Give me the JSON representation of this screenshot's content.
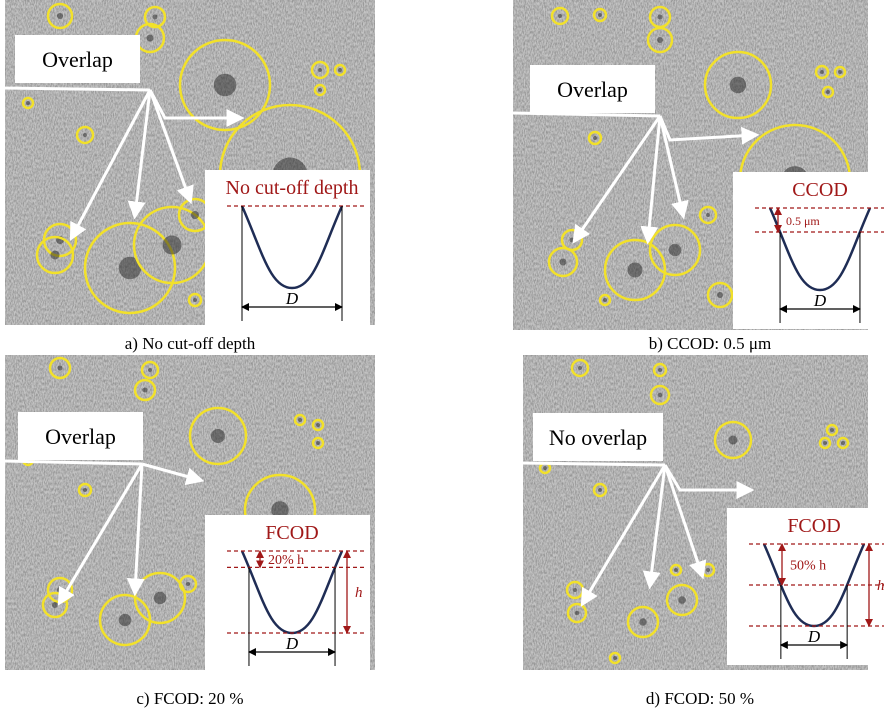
{
  "panels": [
    {
      "caption": "a) No cut-off depth",
      "callout": "Overlap",
      "inset_title": "No cut-off depth",
      "width_label": "D"
    },
    {
      "caption": "b) CCOD: 0.5 μm",
      "callout": "Overlap",
      "inset_title": "CCOD",
      "depth_label": "0.5 μm",
      "width_label": "D"
    },
    {
      "caption": "c) FCOD: 20 %",
      "callout": "Overlap",
      "inset_title": "FCOD",
      "depth_label": "20% h",
      "height_label": "h",
      "width_label": "D"
    },
    {
      "caption": "d) FCOD: 50 %",
      "callout": "No overlap",
      "inset_title": "FCOD",
      "depth_label": "50% h",
      "height_label": "h",
      "width_label": "D"
    }
  ]
}
